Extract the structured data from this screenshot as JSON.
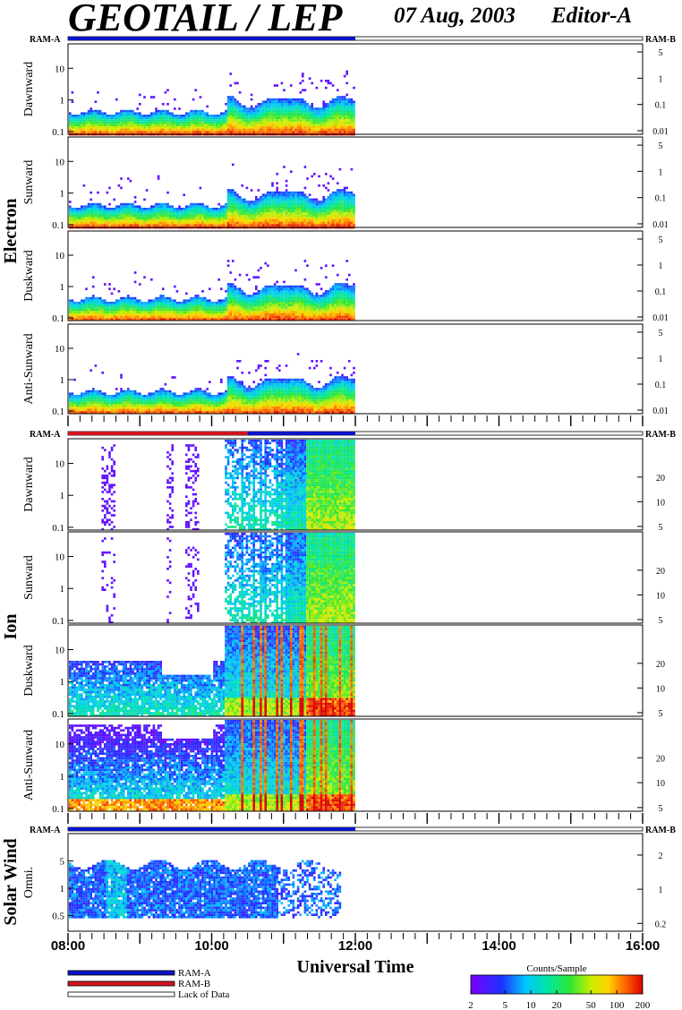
{
  "header": {
    "title": "GEOTAIL / LEP",
    "date": "07 Aug, 2003",
    "editor": "Editor-A"
  },
  "ram_labels": {
    "left": "RAM-A",
    "right": "RAM-B"
  },
  "colors": {
    "ram_a": "#0a14c8",
    "ram_b": "#d2141e",
    "lack_of_data": "#ffffff"
  },
  "legend": {
    "items": [
      {
        "label": "RAM-A",
        "color": "#0a14c8"
      },
      {
        "label": "RAM-B",
        "color": "#d2141e"
      },
      {
        "label": "Lack of Data",
        "color": "#ffffff"
      }
    ]
  },
  "colorbar": {
    "title": "Counts/Sample",
    "scale": "log",
    "range": [
      2,
      200
    ],
    "ticks": [
      "2",
      "5",
      "10",
      "20",
      "50",
      "100",
      "200"
    ]
  },
  "chart_data": {
    "type": "heatmap",
    "xlabel": "Universal Time",
    "x_range": [
      "08:00",
      "16:00"
    ],
    "x_ticks": [
      "08:00",
      "10:00",
      "12:00",
      "14:00",
      "16:00"
    ],
    "data_end": "12:00",
    "groups": [
      {
        "name": "Electron",
        "ram_mode": [
          {
            "start": "08:00",
            "end": "12:00",
            "mode": "RAM-A"
          }
        ],
        "panels": [
          {
            "label": "Dawnward",
            "left_ticks": [
              "10",
              "1",
              "0.1"
            ],
            "right_ticks": [
              "5",
              "1",
              "0.1",
              "0.01"
            ],
            "start_hour": 8.0,
            "end_hour": 12.0
          },
          {
            "label": "Sunward",
            "left_ticks": [
              "10",
              "1",
              "0.1"
            ],
            "right_ticks": [
              "5",
              "1",
              "0.1",
              "0.01"
            ],
            "start_hour": 8.0,
            "end_hour": 12.0
          },
          {
            "label": "Duskward",
            "left_ticks": [
              "10",
              "1",
              "0.1"
            ],
            "right_ticks": [
              "5",
              "1",
              "0.1",
              "0.01"
            ],
            "start_hour": 8.0,
            "end_hour": 12.0
          },
          {
            "label": "Anti-Sunward",
            "left_ticks": [
              "10",
              "1",
              "0.1"
            ],
            "right_ticks": [
              "5",
              "1",
              "0.1",
              "0.01"
            ],
            "start_hour": 8.0,
            "end_hour": 12.0
          }
        ]
      },
      {
        "name": "Ion",
        "ram_mode": [
          {
            "start": "08:00",
            "end": "10:30",
            "mode": "RAM-B"
          },
          {
            "start": "10:30",
            "end": "12:00",
            "mode": "RAM-A"
          }
        ],
        "panels": [
          {
            "label": "Dawnward",
            "left_ticks": [
              "10",
              "1",
              "0.1"
            ],
            "right_ticks": [
              "20",
              "10",
              "5"
            ],
            "start_hour": 8.0,
            "end_hour": 12.0
          },
          {
            "label": "Sunward",
            "left_ticks": [
              "10",
              "1",
              "0.1"
            ],
            "right_ticks": [
              "20",
              "10",
              "5"
            ],
            "start_hour": 8.0,
            "end_hour": 12.0
          },
          {
            "label": "Duskward",
            "left_ticks": [
              "10",
              "1",
              "0.1"
            ],
            "right_ticks": [
              "20",
              "10",
              "5"
            ],
            "start_hour": 8.0,
            "end_hour": 12.0
          },
          {
            "label": "Anti-Sunward",
            "left_ticks": [
              "10",
              "1",
              "0.1"
            ],
            "right_ticks": [
              "20",
              "10",
              "5"
            ],
            "start_hour": 8.0,
            "end_hour": 12.0
          }
        ]
      },
      {
        "name": "Solar Wind",
        "ram_mode": [
          {
            "start": "08:00",
            "end": "12:00",
            "mode": "RAM-A"
          }
        ],
        "panels": [
          {
            "label": "Omni.",
            "left_ticks": [
              "5",
              "1",
              "0.5"
            ],
            "right_ticks": [
              "2",
              "1",
              "0.2"
            ],
            "start_hour": 8.0,
            "end_hour": 11.8
          }
        ]
      }
    ]
  }
}
